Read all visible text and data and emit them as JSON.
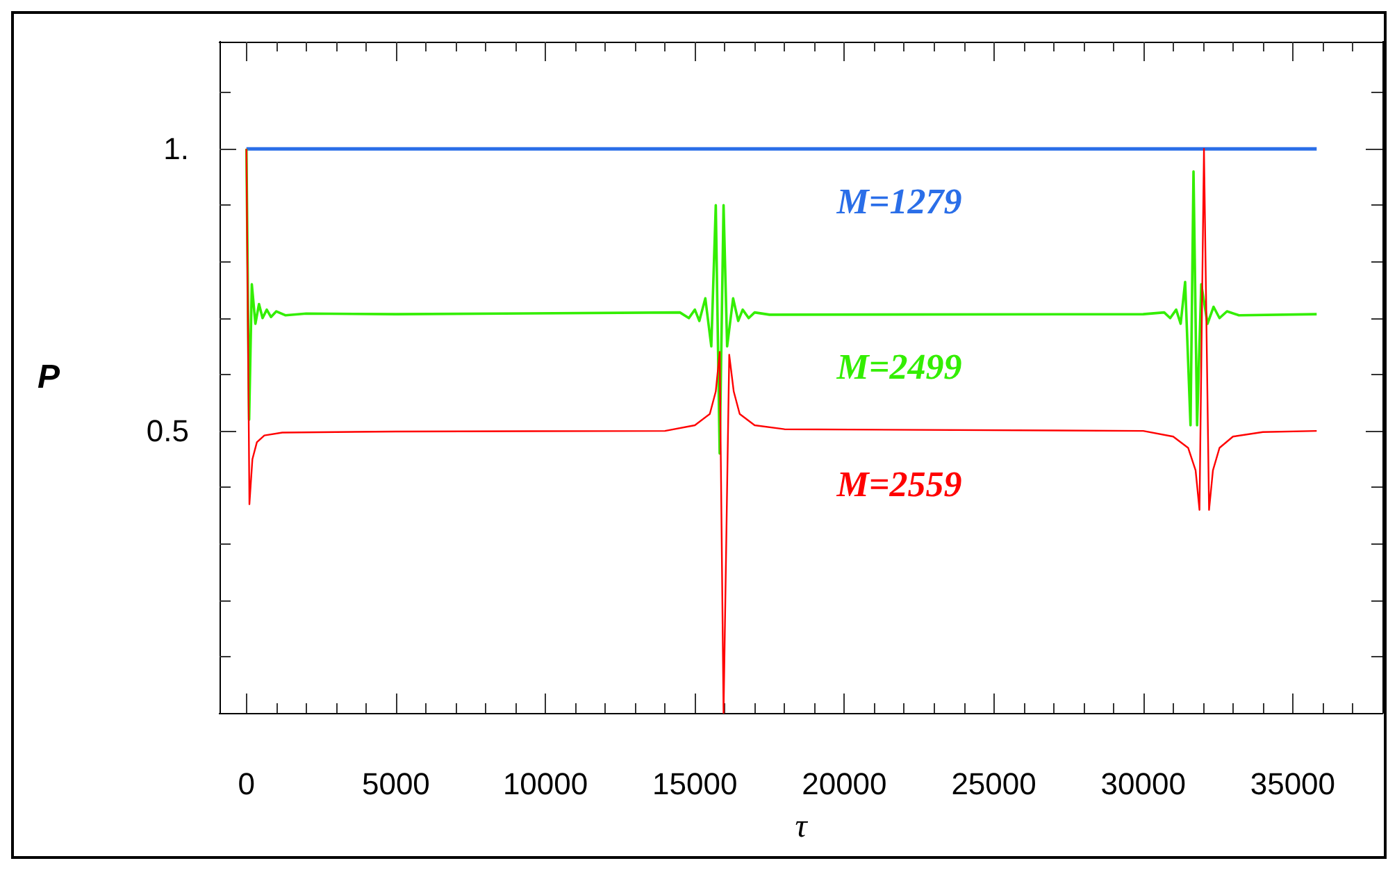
{
  "chart_data": {
    "type": "line",
    "xlabel": "τ",
    "ylabel": "P",
    "xlim": [
      -900,
      38000
    ],
    "ylim": [
      0,
      1.19
    ],
    "xticks": [
      0,
      5000,
      10000,
      15000,
      20000,
      25000,
      30000,
      35000,
      {
        "value": 1000,
        "label": null
      },
      {
        "value": 2000,
        "label": null
      },
      {
        "value": 3000,
        "label": null
      },
      {
        "value": 4000,
        "label": null
      },
      {
        "value": 6000,
        "label": null
      },
      {
        "value": 7000,
        "label": null
      },
      {
        "value": 8000,
        "label": null
      },
      {
        "value": 9000,
        "label": null
      },
      {
        "value": 11000,
        "label": null
      },
      {
        "value": 12000,
        "label": null
      },
      {
        "value": 13000,
        "label": null
      },
      {
        "value": 14000,
        "label": null
      },
      {
        "value": 16000,
        "label": null
      },
      {
        "value": 17000,
        "label": null
      },
      {
        "value": 18000,
        "label": null
      },
      {
        "value": 19000,
        "label": null
      },
      {
        "value": 21000,
        "label": null
      },
      {
        "value": 22000,
        "label": null
      },
      {
        "value": 23000,
        "label": null
      },
      {
        "value": 24000,
        "label": null
      },
      {
        "value": 26000,
        "label": null
      },
      {
        "value": 27000,
        "label": null
      },
      {
        "value": 28000,
        "label": null
      },
      {
        "value": 29000,
        "label": null
      },
      {
        "value": 31000,
        "label": null
      },
      {
        "value": 32000,
        "label": null
      },
      {
        "value": 33000,
        "label": null
      },
      {
        "value": 34000,
        "label": null
      },
      {
        "value": 36000,
        "label": null
      },
      {
        "value": 37000,
        "label": null
      }
    ],
    "yticks": [
      0.5,
      {
        "value": 1,
        "label": "1."
      },
      {
        "value": 0.1,
        "label": null
      },
      {
        "value": 0.2,
        "label": null
      },
      {
        "value": 0.3,
        "label": null
      },
      {
        "value": 0.4,
        "label": null
      },
      {
        "value": 0.6,
        "label": null
      },
      {
        "value": 0.7,
        "label": null
      },
      {
        "value": 0.8,
        "label": null
      },
      {
        "value": 0.9,
        "label": null
      },
      {
        "value": 1.1,
        "label": null
      }
    ],
    "grid": false,
    "legend": false,
    "marker": "none",
    "line_style": "solid",
    "series": [
      {
        "name": "M=1279",
        "color": "#2a6ee8",
        "x": [
          0,
          35800
        ],
        "values": [
          1,
          1
        ]
      },
      {
        "name": "M=2499",
        "color": "#33ee00",
        "x": [
          0,
          90,
          180,
          300,
          420,
          540,
          680,
          820,
          1000,
          1300,
          2000,
          5000,
          14500,
          14800,
          15000,
          15150,
          15350,
          15550,
          15700,
          15830,
          15960,
          16080,
          16280,
          16450,
          16600,
          16800,
          17000,
          17500,
          30000,
          30700,
          30900,
          31100,
          31250,
          31400,
          31580,
          31680,
          31800,
          31940,
          32150,
          32350,
          32550,
          32800,
          33200,
          35800
        ],
        "values": [
          1,
          0.52,
          0.76,
          0.69,
          0.725,
          0.7,
          0.715,
          0.702,
          0.712,
          0.705,
          0.708,
          0.707,
          0.71,
          0.7,
          0.715,
          0.695,
          0.735,
          0.65,
          0.9,
          0.46,
          0.9,
          0.65,
          0.735,
          0.695,
          0.715,
          0.7,
          0.71,
          0.706,
          0.707,
          0.71,
          0.7,
          0.715,
          0.69,
          0.764,
          0.51,
          0.96,
          0.51,
          0.76,
          0.69,
          0.72,
          0.7,
          0.712,
          0.705,
          0.707
        ]
      },
      {
        "name": "M=2559",
        "color": "#ff0000",
        "x": [
          0,
          100,
          200,
          350,
          600,
          1200,
          5000,
          14000,
          15000,
          15500,
          15700,
          15830,
          15960,
          16150,
          16300,
          16500,
          17000,
          18000,
          30000,
          31000,
          31500,
          31750,
          31880,
          32030,
          32200,
          32330,
          32550,
          33000,
          34000,
          35800
        ],
        "values": [
          1,
          0.37,
          0.45,
          0.48,
          0.492,
          0.497,
          0.499,
          0.5,
          0.51,
          0.53,
          0.57,
          0.64,
          0,
          0.635,
          0.57,
          0.53,
          0.51,
          0.503,
          0.5,
          0.49,
          0.47,
          0.43,
          0.36,
          1,
          0.36,
          0.43,
          0.47,
          0.49,
          0.498,
          0.5
        ]
      }
    ]
  }
}
